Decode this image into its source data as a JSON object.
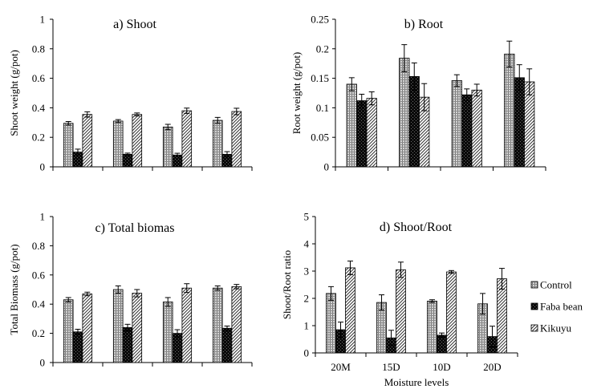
{
  "chart_data": [
    {
      "type": "bar",
      "title": "a) Shoot",
      "ylabel": "Shoot weight (g/pot)",
      "xlabel": "",
      "categories": [
        "20M",
        "15D",
        "10D",
        "20D"
      ],
      "ylim": [
        0,
        1
      ],
      "yticks": [
        "0",
        "0.2",
        "0.4",
        "0.6",
        "0.8",
        "1"
      ],
      "show_category_labels": false,
      "series": [
        {
          "name": "Control",
          "values": [
            0.295,
            0.31,
            0.27,
            0.315
          ],
          "errors": [
            0.012,
            0.01,
            0.018,
            0.02
          ]
        },
        {
          "name": "Faba bean",
          "values": [
            0.1,
            0.085,
            0.08,
            0.085
          ],
          "errors": [
            0.02,
            0.008,
            0.012,
            0.018
          ]
        },
        {
          "name": "Kikuyu",
          "values": [
            0.355,
            0.355,
            0.38,
            0.375
          ],
          "errors": [
            0.018,
            0.01,
            0.018,
            0.022
          ]
        }
      ]
    },
    {
      "type": "bar",
      "title": "b) Root",
      "ylabel": "Root weight (g/pot)",
      "xlabel": "",
      "categories": [
        "20M",
        "15D",
        "10D",
        "20D"
      ],
      "ylim": [
        0,
        0.25
      ],
      "yticks": [
        "0",
        "0.05",
        "0.1",
        "0.15",
        "0.2",
        "0.25"
      ],
      "show_category_labels": false,
      "series": [
        {
          "name": "Control",
          "values": [
            0.14,
            0.184,
            0.146,
            0.191
          ],
          "errors": [
            0.011,
            0.023,
            0.01,
            0.022
          ]
        },
        {
          "name": "Faba bean",
          "values": [
            0.112,
            0.153,
            0.122,
            0.151
          ],
          "errors": [
            0.011,
            0.023,
            0.01,
            0.022
          ]
        },
        {
          "name": "Kikuyu",
          "values": [
            0.116,
            0.118,
            0.13,
            0.144
          ],
          "errors": [
            0.011,
            0.023,
            0.01,
            0.022
          ]
        }
      ]
    },
    {
      "type": "bar",
      "title": "c) Total biomas",
      "ylabel": "Total Biomass (g/pot)",
      "xlabel": "",
      "categories": [
        "20M",
        "15D",
        "10D",
        "20D"
      ],
      "ylim": [
        0,
        1
      ],
      "yticks": [
        "0",
        "0.2",
        "0.4",
        "0.6",
        "0.8",
        "1"
      ],
      "show_category_labels": false,
      "series": [
        {
          "name": "Control",
          "values": [
            0.43,
            0.5,
            0.415,
            0.51
          ],
          "errors": [
            0.015,
            0.025,
            0.03,
            0.015
          ]
        },
        {
          "name": "Faba bean",
          "values": [
            0.21,
            0.24,
            0.2,
            0.235
          ],
          "errors": [
            0.018,
            0.022,
            0.025,
            0.015
          ]
        },
        {
          "name": "Kikuyu",
          "values": [
            0.47,
            0.475,
            0.51,
            0.52
          ],
          "errors": [
            0.012,
            0.025,
            0.03,
            0.015
          ]
        }
      ]
    },
    {
      "type": "bar",
      "title": "d) Shoot/Root",
      "ylabel": "Shoot/Root ratio",
      "xlabel": "Moisture levels",
      "categories": [
        "20M",
        "15D",
        "10D",
        "20D"
      ],
      "ylim": [
        0,
        5
      ],
      "yticks": [
        "0",
        "1",
        "2",
        "3",
        "4",
        "5"
      ],
      "show_category_labels": true,
      "series": [
        {
          "name": "Control",
          "values": [
            2.18,
            1.85,
            1.9,
            1.8
          ],
          "errors": [
            0.25,
            0.28,
            0.05,
            0.38
          ]
        },
        {
          "name": "Faba bean",
          "values": [
            0.85,
            0.55,
            0.65,
            0.6
          ],
          "errors": [
            0.28,
            0.28,
            0.08,
            0.38
          ]
        },
        {
          "name": "Kikuyu",
          "values": [
            3.12,
            3.05,
            2.97,
            2.72
          ],
          "errors": [
            0.25,
            0.28,
            0.05,
            0.38
          ]
        }
      ]
    }
  ],
  "legend": {
    "placement": "right of panel d",
    "items": [
      {
        "label": "Control",
        "pattern": "grid"
      },
      {
        "label": "Faba bean",
        "pattern": "dark-check"
      },
      {
        "label": "Kikuyu",
        "pattern": "diagonal-hatch"
      }
    ]
  }
}
